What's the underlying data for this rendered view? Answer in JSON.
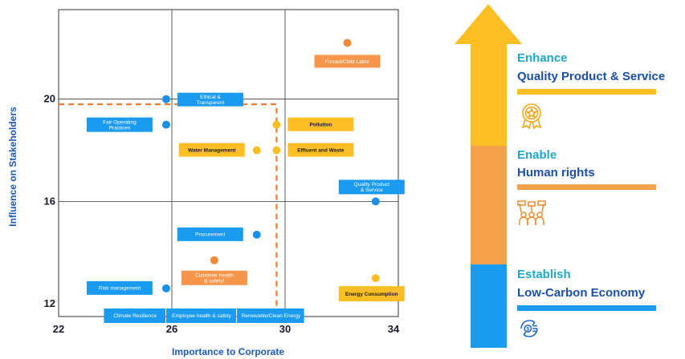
{
  "chart_data": {
    "type": "scatter",
    "xlabel": "Importance to Corporate",
    "ylabel": "Influence on Stakeholders",
    "xlim": [
      22,
      34
    ],
    "ylim": [
      11.5,
      23.5
    ],
    "xticks": [
      22,
      26,
      30,
      34
    ],
    "yticks": [
      12,
      16,
      20
    ],
    "grid": true,
    "highlight_region": {
      "x": [
        22,
        29.7
      ],
      "y": [
        11.5,
        19.8
      ],
      "style": "dashed",
      "color": "#ef7a35"
    },
    "points": [
      {
        "x": 32.2,
        "y": 22.2,
        "color": "#ef8a3c",
        "label": "Forced/Child Labor",
        "label_color": "#f5964a"
      },
      {
        "x": 25.8,
        "y": 20.0,
        "color": "#1a8fe8",
        "label": "Ethical & Transparent",
        "label_color": "#1a9bf0"
      },
      {
        "x": 25.8,
        "y": 19.0,
        "color": "#1a8fe8",
        "label": "Fair Operating Practices",
        "label_color": "#1a9bf0"
      },
      {
        "x": 29.7,
        "y": 19.0,
        "color": "#fbbf24",
        "label": "Pollution",
        "label_color": "#fbbf24"
      },
      {
        "x": 29.7,
        "y": 18.0,
        "color": "#fbbf24",
        "label": "Effluent and Waste",
        "label_color": "#fbbf24"
      },
      {
        "x": 29.0,
        "y": 18.0,
        "color": "#fbbf24",
        "label": "Water Management",
        "label_color": "#fbbf24"
      },
      {
        "x": 33.2,
        "y": 16.0,
        "color": "#1a8fe8",
        "label": "Quality Product & Service",
        "label_color": "#1a9bf0"
      },
      {
        "x": 29.0,
        "y": 14.7,
        "color": "#1a8fe8",
        "label": "Procurement",
        "label_color": "#1a9bf0"
      },
      {
        "x": 27.5,
        "y": 13.7,
        "color": "#ef8a3c",
        "label": "Customer health & safety!",
        "label_color": "#f5964a"
      },
      {
        "x": 33.2,
        "y": 13.0,
        "color": "#fbbf24",
        "label": "Energy Consumption",
        "label_color": "#fbbf24"
      },
      {
        "x": 25.8,
        "y": 12.6,
        "color": "#1a8fe8",
        "label": "Risk management",
        "label_color": "#1a9bf0"
      }
    ],
    "bottom_labels": [
      {
        "label": "Climate Resilience",
        "x_from": 23.6,
        "x_to": 25.8,
        "color": "#1a9bf0"
      },
      {
        "label": "Employee health & safety",
        "x_from": 25.8,
        "x_to": 28.3,
        "color": "#1a9bf0"
      },
      {
        "label": "Renewable/Clean Energy",
        "x_from": 28.3,
        "x_to": 30.7,
        "color": "#1a9bf0"
      }
    ]
  },
  "panel": {
    "sections": [
      {
        "title1": "Enhance",
        "title2": "Quality Product & Service",
        "color": "#fbbf24",
        "icon": "award-medal-icon"
      },
      {
        "title1": "Enable",
        "title2": "Human rights",
        "color": "#f5a04a",
        "icon": "people-group-icon"
      },
      {
        "title1": "Establish",
        "title2": "Low-Carbon Economy",
        "color": "#1a9bf0",
        "icon": "money-cycle-icon"
      }
    ]
  }
}
